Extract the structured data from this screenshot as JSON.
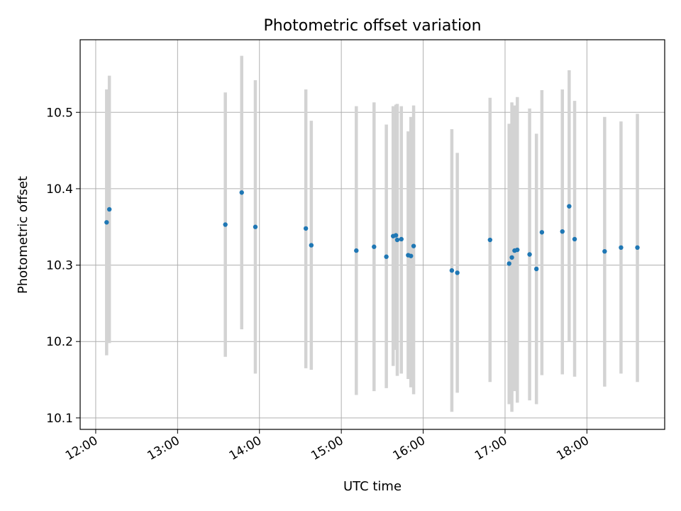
{
  "chart_data": {
    "type": "scatter",
    "title": "Photometric offset variation",
    "xlabel": "UTC time",
    "ylabel": "Photometric offset",
    "x_ticks": [
      "12:00",
      "13:00",
      "14:00",
      "15:00",
      "16:00",
      "17:00",
      "18:00"
    ],
    "x_tick_hours": [
      12,
      13,
      14,
      15,
      16,
      17,
      18
    ],
    "y_ticks": [
      "10.1",
      "10.2",
      "10.3",
      "10.4",
      "10.5"
    ],
    "y_tick_values": [
      10.1,
      10.2,
      10.3,
      10.4,
      10.5
    ],
    "xlim_hours": [
      11.81,
      18.95
    ],
    "ylim": [
      10.085,
      10.595
    ],
    "grid": true,
    "point_color": "#1f77b4",
    "errorbar_color": "#d3d3d3",
    "points": [
      {
        "t": "12:08",
        "y": 10.356,
        "lo": 10.182,
        "hi": 10.53
      },
      {
        "t": "12:10",
        "y": 10.373,
        "lo": 10.198,
        "hi": 10.548
      },
      {
        "t": "13:35",
        "y": 10.353,
        "lo": 10.18,
        "hi": 10.526
      },
      {
        "t": "13:47",
        "y": 10.395,
        "lo": 10.216,
        "hi": 10.574
      },
      {
        "t": "13:57",
        "y": 10.35,
        "lo": 10.158,
        "hi": 10.542
      },
      {
        "t": "14:34",
        "y": 10.348,
        "lo": 10.165,
        "hi": 10.53
      },
      {
        "t": "14:38",
        "y": 10.326,
        "lo": 10.163,
        "hi": 10.489
      },
      {
        "t": "15:11",
        "y": 10.319,
        "lo": 10.13,
        "hi": 10.508
      },
      {
        "t": "15:24",
        "y": 10.324,
        "lo": 10.135,
        "hi": 10.513
      },
      {
        "t": "15:33",
        "y": 10.311,
        "lo": 10.139,
        "hi": 10.484
      },
      {
        "t": "15:38",
        "y": 10.338,
        "lo": 10.168,
        "hi": 10.508
      },
      {
        "t": "15:40",
        "y": 10.339,
        "lo": 10.189,
        "hi": 10.51
      },
      {
        "t": "15:41",
        "y": 10.333,
        "lo": 10.155,
        "hi": 10.511
      },
      {
        "t": "15:44",
        "y": 10.334,
        "lo": 10.158,
        "hi": 10.508
      },
      {
        "t": "15:49",
        "y": 10.313,
        "lo": 10.151,
        "hi": 10.475
      },
      {
        "t": "15:51",
        "y": 10.312,
        "lo": 10.14,
        "hi": 10.494
      },
      {
        "t": "15:53",
        "y": 10.325,
        "lo": 10.131,
        "hi": 10.509
      },
      {
        "t": "16:21",
        "y": 10.293,
        "lo": 10.108,
        "hi": 10.478
      },
      {
        "t": "16:25",
        "y": 10.29,
        "lo": 10.133,
        "hi": 10.447
      },
      {
        "t": "16:49",
        "y": 10.333,
        "lo": 10.147,
        "hi": 10.519
      },
      {
        "t": "17:03",
        "y": 10.302,
        "lo": 10.118,
        "hi": 10.485
      },
      {
        "t": "17:05",
        "y": 10.31,
        "lo": 10.108,
        "hi": 10.513
      },
      {
        "t": "17:07",
        "y": 10.319,
        "lo": 10.135,
        "hi": 10.509
      },
      {
        "t": "17:09",
        "y": 10.32,
        "lo": 10.12,
        "hi": 10.52
      },
      {
        "t": "17:18",
        "y": 10.314,
        "lo": 10.123,
        "hi": 10.505
      },
      {
        "t": "17:23",
        "y": 10.295,
        "lo": 10.118,
        "hi": 10.472
      },
      {
        "t": "17:27",
        "y": 10.343,
        "lo": 10.156,
        "hi": 10.529
      },
      {
        "t": "17:42",
        "y": 10.344,
        "lo": 10.157,
        "hi": 10.53
      },
      {
        "t": "17:47",
        "y": 10.377,
        "lo": 10.2,
        "hi": 10.555
      },
      {
        "t": "17:51",
        "y": 10.334,
        "lo": 10.154,
        "hi": 10.515
      },
      {
        "t": "18:13",
        "y": 10.318,
        "lo": 10.141,
        "hi": 10.494
      },
      {
        "t": "18:25",
        "y": 10.323,
        "lo": 10.158,
        "hi": 10.488
      },
      {
        "t": "18:37",
        "y": 10.323,
        "lo": 10.147,
        "hi": 10.498
      }
    ]
  }
}
